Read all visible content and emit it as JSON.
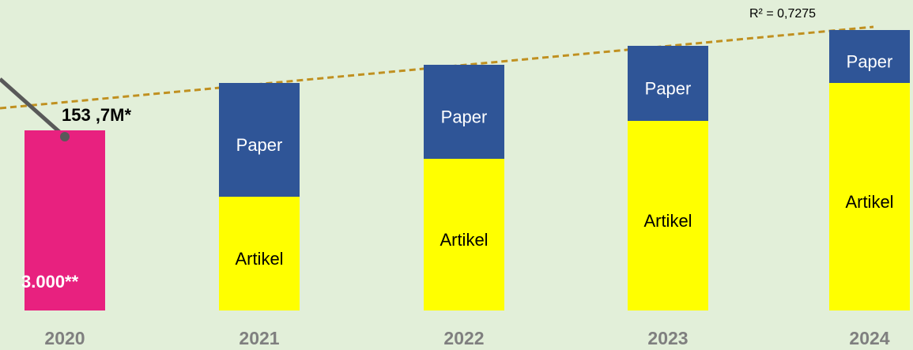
{
  "chart_data": {
    "type": "stacked_bar",
    "categories": [
      "2020",
      "2021",
      "2022",
      "2023",
      "2024"
    ],
    "series": [
      {
        "color": "#e8217f",
        "values": [
          228,
          null,
          null,
          null,
          null
        ]
      },
      {
        "name": "Artikel",
        "color": "#ffff00",
        "label_color": "#000000",
        "values": [
          null,
          144,
          192,
          240,
          288
        ]
      },
      {
        "name": "Paper",
        "color": "#2f5597",
        "label_color": "#ffffff",
        "values": [
          null,
          144,
          119,
          95,
          67
        ]
      }
    ],
    "annotations": [
      "153 ,7M*",
      "3.000**",
      "R² = 0,7275"
    ]
  }
}
